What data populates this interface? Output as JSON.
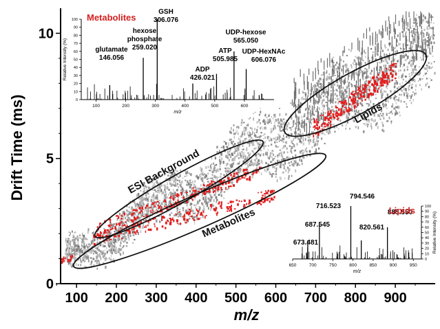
{
  "chart_data": {
    "type": "scatter",
    "xlabel": "m/z",
    "ylabel": "Drift Time (ms)",
    "xlim": [
      60,
      1000
    ],
    "ylim": [
      0,
      11
    ],
    "xticks": [
      "100",
      "200",
      "300",
      "400",
      "500",
      "600",
      "700",
      "800",
      "900"
    ],
    "yticks": [
      "0",
      "5",
      "10"
    ],
    "regions": [
      {
        "label": "ESI Background",
        "center": [
          355,
          3.9
        ],
        "rx": 270,
        "ry": 0.85
      },
      {
        "label": "Metabolites",
        "center": [
          345,
          2.75
        ],
        "rx": 310,
        "ry": 0.95
      },
      {
        "label": "Lipids",
        "center": [
          770,
          7.3
        ],
        "rx": 215,
        "ry": 1.2
      }
    ],
    "insets": [
      {
        "title": "Metabolites",
        "ylabel": "Relative Intensity (%)",
        "xlabel": "m/z",
        "xlim": [
          50,
          700
        ],
        "ylim": [
          0,
          100
        ],
        "xticks": [
          "100",
          "200",
          "300",
          "400",
          "500",
          "600"
        ],
        "yticks": [
          "0",
          "10",
          "20",
          "30",
          "40",
          "50",
          "60",
          "70",
          "80",
          "90",
          "100"
        ],
        "peaks": [
          {
            "mz": 146.056,
            "intensity": 18,
            "label": [
              "glutamate",
              "146.056"
            ]
          },
          {
            "mz": 259.02,
            "intensity": 52,
            "label": [
              "hexose",
              "phosphate",
              "259.020"
            ]
          },
          {
            "mz": 306.076,
            "intensity": 100,
            "label": [
              "GSH",
              "306.076"
            ]
          },
          {
            "mz": 426.021,
            "intensity": 20,
            "label": [
              "ADP",
              "426.021"
            ]
          },
          {
            "mz": 505.985,
            "intensity": 32,
            "label": [
              "ATP",
              "505.985"
            ]
          },
          {
            "mz": 565.05,
            "intensity": 60,
            "label": [
              "UDP-hexose",
              "565.050"
            ]
          },
          {
            "mz": 606.076,
            "intensity": 38,
            "label": [
              "UDP-HexNAc",
              "606.076"
            ]
          }
        ]
      },
      {
        "title": "Lipids",
        "ylabel": "Relative Intensity (%)",
        "xlabel": "m/z",
        "xlim": [
          650,
          970
        ],
        "ylim": [
          0,
          100
        ],
        "xticks": [
          "650",
          "700",
          "750",
          "800",
          "850",
          "900",
          "950"
        ],
        "yticks": [
          "0",
          "10",
          "20",
          "30",
          "40",
          "50",
          "60",
          "70",
          "80",
          "90",
          "100"
        ],
        "peaks": [
          {
            "mz": 673.481,
            "intensity": 10,
            "label": [
              "673.481"
            ]
          },
          {
            "mz": 687.545,
            "intensity": 35,
            "label": [
              "687.545"
            ]
          },
          {
            "mz": 716.523,
            "intensity": 65,
            "label": [
              "716.523"
            ]
          },
          {
            "mz": 794.546,
            "intensity": 100,
            "label": [
              "794.546"
            ]
          },
          {
            "mz": 820.561,
            "intensity": 35,
            "label": [
              "820.561"
            ]
          },
          {
            "mz": 885.55,
            "intensity": 60,
            "label": [
              "885.550"
            ]
          }
        ]
      }
    ],
    "colors": {
      "points": "#8c8c8c",
      "highlight": "#e02020",
      "inset_title": "#d42020",
      "axis": "#000000"
    }
  }
}
